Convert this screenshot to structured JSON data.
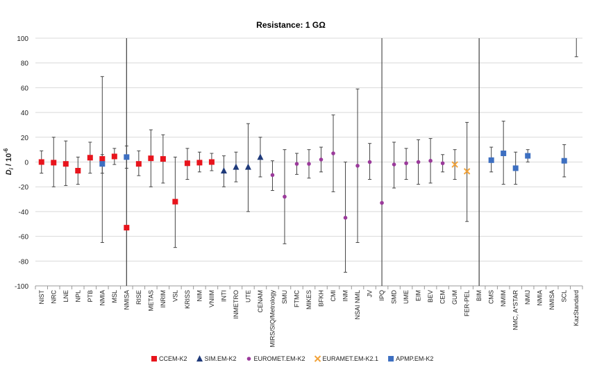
{
  "chart_data": {
    "type": "scatter",
    "title": "Resistance: 1 GΩ",
    "ylabel_main": "D",
    "ylabel_sub": "i",
    "ylabel_rest": " / 10",
    "ylabel_sup": "-6",
    "xlabel": "",
    "ylim": [
      -100,
      100
    ],
    "yticks": [
      -100,
      -80,
      -60,
      -40,
      -20,
      0,
      20,
      40,
      60,
      80,
      100
    ],
    "grid": "horizontal",
    "legend_position": "bottom",
    "categories": [
      "NIST",
      "NRC",
      "LNE",
      "NPL",
      "PTB",
      "NMIA",
      "MSL",
      "NMISA",
      "RISE",
      "METAS",
      "INRIM",
      "VSL",
      "KRISS",
      "NIM",
      "VNIIM",
      "INTI",
      "INMETRO",
      "UTE",
      "CENAM",
      "MIRS/SIQ/Metrology",
      "SMU",
      "FTMC",
      "MIKES",
      "BFKH",
      "CMI",
      "INM",
      "NSAI NML",
      "JV",
      "IPQ",
      "SMD",
      "UME",
      "EIM",
      "BEV",
      "CEM",
      "GUM",
      "FER-PEL",
      "BIM",
      "CMS",
      "NMIM",
      "NMC, A*STAR",
      "NMIJ",
      "NMIA",
      "NMISA",
      "SCL",
      "KazStandard"
    ],
    "vertical_separators_after": [
      "NMISA",
      "IPQ",
      "BIM"
    ],
    "series": [
      {
        "name": "CCEM-K2",
        "color": "#e8141c",
        "marker": "square",
        "points": [
          {
            "x": "NIST",
            "y": 0,
            "lo": -9,
            "hi": 9
          },
          {
            "x": "NRC",
            "y": -0.5,
            "lo": -20,
            "hi": 20
          },
          {
            "x": "LNE",
            "y": -1.5,
            "lo": -19,
            "hi": 17
          },
          {
            "x": "NPL",
            "y": -7,
            "lo": -18,
            "hi": 4
          },
          {
            "x": "PTB",
            "y": 3.5,
            "lo": -9,
            "hi": 16
          },
          {
            "x": "NMIA",
            "y": 2.5,
            "lo": -65,
            "hi": 69
          },
          {
            "x": "MSL",
            "y": 4.5,
            "lo": -2,
            "hi": 11
          },
          {
            "x": "NMISA",
            "y": -53,
            "lo": -100,
            "hi": 100
          },
          {
            "x": "RISE",
            "y": -1.5,
            "lo": -11,
            "hi": 9
          },
          {
            "x": "METAS",
            "y": 3,
            "lo": -20,
            "hi": 26
          },
          {
            "x": "INRIM",
            "y": 2.5,
            "lo": -17,
            "hi": 22
          },
          {
            "x": "VSL",
            "y": -32,
            "lo": -69,
            "hi": 4
          },
          {
            "x": "KRISS",
            "y": -1,
            "lo": -14,
            "hi": 11
          },
          {
            "x": "NIM",
            "y": -0.5,
            "lo": -8,
            "hi": 8
          },
          {
            "x": "VNIIM",
            "y": 0,
            "lo": -7,
            "hi": 7
          }
        ]
      },
      {
        "name": "SIM.EM-K2",
        "color": "#1f3a7a",
        "marker": "triangle",
        "points": [
          {
            "x": "INTI",
            "y": -7,
            "lo": -20,
            "hi": 5
          },
          {
            "x": "INMETRO",
            "y": -4,
            "lo": -16,
            "hi": 8
          },
          {
            "x": "UTE",
            "y": -4,
            "lo": -40,
            "hi": 31
          },
          {
            "x": "CENAM",
            "y": 4,
            "lo": -12,
            "hi": 20
          }
        ]
      },
      {
        "name": "EUROMET.EM-K2",
        "color": "#9b3a9b",
        "marker": "circle",
        "points": [
          {
            "x": "MIRS/SIQ/Metrology",
            "y": -10.5,
            "lo": -23,
            "hi": 1
          },
          {
            "x": "SMU",
            "y": -28,
            "lo": -66,
            "hi": 10
          },
          {
            "x": "FTMC",
            "y": -1.5,
            "lo": -10,
            "hi": 7
          },
          {
            "x": "MIKES",
            "y": -1.5,
            "lo": -13,
            "hi": 10
          },
          {
            "x": "BFKH",
            "y": 2,
            "lo": -8,
            "hi": 12
          },
          {
            "x": "CMI",
            "y": 7,
            "lo": -24,
            "hi": 38
          },
          {
            "x": "INM",
            "y": -45,
            "lo": -89,
            "hi": 0
          },
          {
            "x": "NSAI NML",
            "y": -3,
            "lo": -65,
            "hi": 59
          },
          {
            "x": "JV",
            "y": 0,
            "lo": -14,
            "hi": 15
          },
          {
            "x": "IPQ",
            "y": -33,
            "lo": -100,
            "hi": 100
          },
          {
            "x": "SMD",
            "y": -2,
            "lo": -21,
            "hi": 16
          },
          {
            "x": "UME",
            "y": -1,
            "lo": -14,
            "hi": 11
          },
          {
            "x": "EIM",
            "y": 0,
            "lo": -18,
            "hi": 18
          },
          {
            "x": "BEV",
            "y": 1,
            "lo": -17,
            "hi": 19
          },
          {
            "x": "CEM",
            "y": -1,
            "lo": -8,
            "hi": 6
          }
        ]
      },
      {
        "name": "EURAMET.EM-K2.1",
        "color": "#f2a33a",
        "marker": "x",
        "points": [
          {
            "x": "GUM",
            "y": -2,
            "lo": -14,
            "hi": 10
          },
          {
            "x": "FER-PEL",
            "y": -7.5,
            "lo": -48,
            "hi": 32
          }
        ]
      },
      {
        "name": "APMP.EM-K2",
        "color": "#3d6fc1",
        "marker": "square",
        "points": [
          {
            "x": "BIM",
            "y": null,
            "lo": -100,
            "hi": 100
          },
          {
            "x": "CMS",
            "y": 1.5,
            "lo": -8,
            "hi": 12
          },
          {
            "x": "NMIM",
            "y": 7,
            "lo": -18,
            "hi": 33
          },
          {
            "x": "NMC, A*STAR",
            "y": -5,
            "lo": -18,
            "hi": 8
          },
          {
            "x": "NMIJ",
            "y": 5,
            "lo": 0,
            "hi": 10
          },
          {
            "x": "NMIA",
            "y": -1.5,
            "lo": -9,
            "hi": 6
          },
          {
            "x": "NMISA",
            "y": 4,
            "lo": -5,
            "hi": 13
          },
          {
            "x": "SCL",
            "y": 1,
            "lo": -12,
            "hi": 14
          },
          {
            "x": "KazStandard",
            "y": null,
            "lo": 85,
            "hi": 100
          }
        ]
      }
    ]
  }
}
